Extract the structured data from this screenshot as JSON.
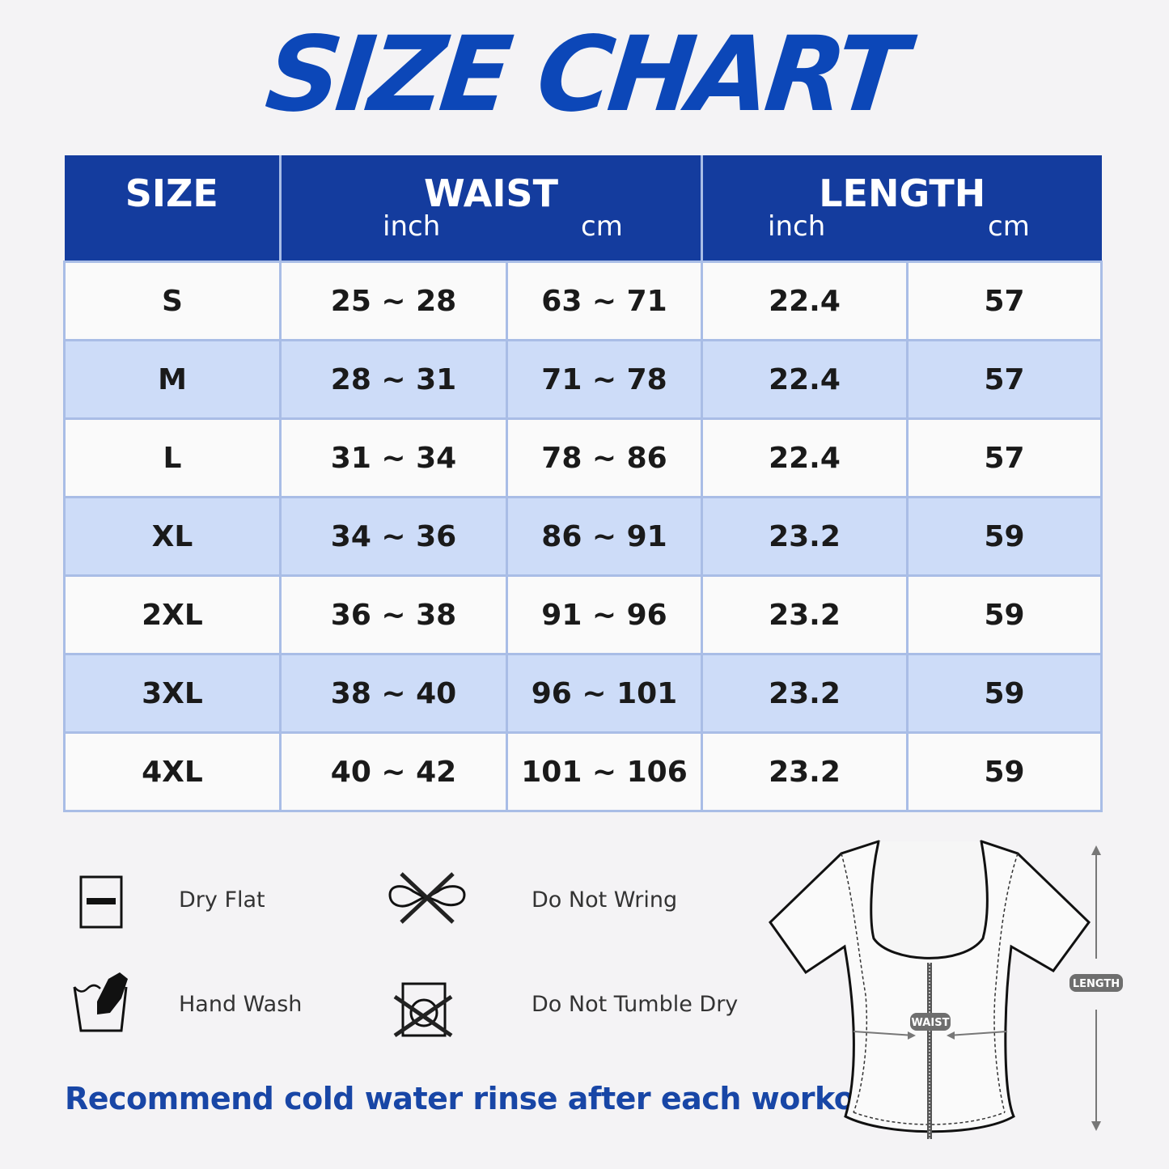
{
  "title": "SIZE CHART",
  "colors": {
    "header": "#143c9e",
    "title": "#0c47b8",
    "row_alt": "#cddcf8",
    "note": "#1846a6"
  },
  "table": {
    "headers": {
      "size": "SIZE",
      "waist": "WAIST",
      "length": "LENGTH",
      "inch": "inch",
      "cm": "cm"
    },
    "rows": [
      {
        "size": "S",
        "waist_in": "25 ~ 28",
        "waist_cm": "63 ~ 71",
        "length_in": "22.4",
        "length_cm": "57"
      },
      {
        "size": "M",
        "waist_in": "28 ~ 31",
        "waist_cm": "71 ~ 78",
        "length_in": "22.4",
        "length_cm": "57"
      },
      {
        "size": "L",
        "waist_in": "31 ~ 34",
        "waist_cm": "78 ~ 86",
        "length_in": "22.4",
        "length_cm": "57"
      },
      {
        "size": "XL",
        "waist_in": "34 ~ 36",
        "waist_cm": "86 ~ 91",
        "length_in": "23.2",
        "length_cm": "59"
      },
      {
        "size": "2XL",
        "waist_in": "36 ~ 38",
        "waist_cm": "91 ~ 96",
        "length_in": "23.2",
        "length_cm": "59"
      },
      {
        "size": "3XL",
        "waist_in": "38 ~ 40",
        "waist_cm": "96 ~ 101",
        "length_in": "23.2",
        "length_cm": "59"
      },
      {
        "size": "4XL",
        "waist_in": "40 ~ 42",
        "waist_cm": "101 ~ 106",
        "length_in": "23.2",
        "length_cm": "59"
      }
    ]
  },
  "care": [
    {
      "label": "Dry Flat",
      "icon": "dry-flat-icon"
    },
    {
      "label": "Do Not Wring",
      "icon": "do-not-wring-icon"
    },
    {
      "label": "Hand Wash",
      "icon": "hand-wash-icon"
    },
    {
      "label": "Do Not Tumble Dry",
      "icon": "do-not-tumble-dry-icon"
    }
  ],
  "note": "Recommend cold water rinse after each workout.",
  "diagram": {
    "waist_label": "WAIST",
    "length_label": "LENGTH"
  }
}
